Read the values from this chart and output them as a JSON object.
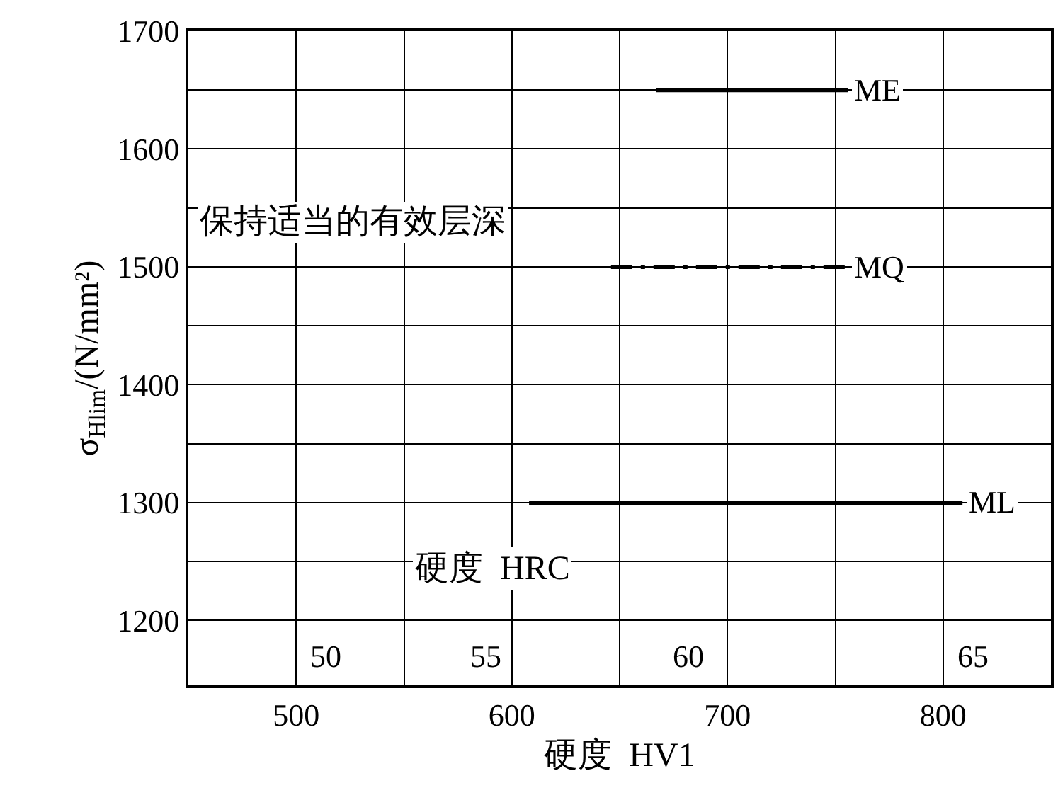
{
  "chart_data": {
    "type": "line",
    "xlabel": "硬度  HV1",
    "ylabel": "σ$_{Hlim}$/(N/mm²)",
    "xlim": [
      450,
      850
    ],
    "ylim": [
      1145,
      1700
    ],
    "xticks": [
      500,
      {
        "value": 550,
        "label": null
      },
      600,
      {
        "value": 650,
        "label": null
      },
      700,
      {
        "value": 750,
        "label": null
      },
      800
    ],
    "yticks": [
      1200,
      {
        "value": 1250,
        "label": null
      },
      1300,
      {
        "value": 1350,
        "label": null
      },
      1400,
      {
        "value": 1450,
        "label": null
      },
      1500,
      {
        "value": 1550,
        "label": null
      },
      1600,
      {
        "value": 1650,
        "label": null
      },
      1700
    ],
    "grid": true,
    "legend": false,
    "marker": "none",
    "series": [
      {
        "name": "ME",
        "color": "#000000",
        "x": [
          667,
          756
        ],
        "values": [
          1650,
          1650
        ]
      },
      {
        "name": "MQ",
        "color": "#000000",
        "x": [
          646,
          756
        ],
        "values": [
          1500,
          1500
        ],
        "line_style": "dashed"
      },
      {
        "name": "ML",
        "color": "#000000",
        "x": [
          608,
          809
        ],
        "values": [
          1300,
          1300
        ]
      }
    ],
    "annotations": [
      "保持适当的有效层深",
      "硬度  HRC",
      {
        "text": "50",
        "x": 514,
        "y": 1170
      },
      {
        "text": "55",
        "x": 588,
        "y": 1170
      },
      {
        "text": "60",
        "x": 682,
        "y": 1170
      },
      {
        "text": "65",
        "x": 814,
        "y": 1170
      }
    ]
  }
}
